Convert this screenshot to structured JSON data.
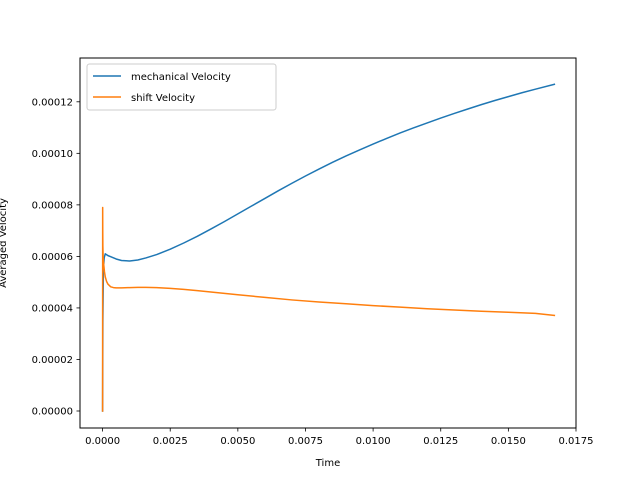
{
  "chart_data": {
    "type": "line",
    "title": "",
    "xlabel": "Time",
    "ylabel": "Averaged Velocity",
    "xlim": [
      -0.000835,
      0.0175
    ],
    "ylim": [
      -6.6e-06,
      0.000137
    ],
    "grid": false,
    "legend_position": "top-left",
    "x_ticks": [
      {
        "value": 0.0,
        "label": "0.0000"
      },
      {
        "value": 0.0025,
        "label": "0.0025"
      },
      {
        "value": 0.005,
        "label": "0.0050"
      },
      {
        "value": 0.0075,
        "label": "0.0075"
      },
      {
        "value": 0.01,
        "label": "0.0100"
      },
      {
        "value": 0.0125,
        "label": "0.0125"
      },
      {
        "value": 0.015,
        "label": "0.0150"
      },
      {
        "value": 0.0175,
        "label": "0.0175"
      }
    ],
    "y_ticks": [
      {
        "value": 0.0,
        "label": "0.00000"
      },
      {
        "value": 2e-05,
        "label": "0.00002"
      },
      {
        "value": 4e-05,
        "label": "0.00004"
      },
      {
        "value": 6e-05,
        "label": "0.00006"
      },
      {
        "value": 8e-05,
        "label": "0.00008"
      },
      {
        "value": 0.0001,
        "label": "0.00010"
      },
      {
        "value": 0.00012,
        "label": "0.00012"
      }
    ],
    "series": [
      {
        "name": "mechanical Velocity",
        "color": "#1f77b4",
        "x": [
          0.0,
          1e-05,
          3e-05,
          6e-05,
          0.0001,
          0.0002,
          0.0003,
          0.0005,
          0.0007,
          0.001,
          0.0013,
          0.0016,
          0.002,
          0.0025,
          0.003,
          0.0035,
          0.004,
          0.0045,
          0.005,
          0.0055,
          0.006,
          0.0065,
          0.007,
          0.0075,
          0.008,
          0.0085,
          0.009,
          0.0095,
          0.01,
          0.0105,
          0.011,
          0.0115,
          0.012,
          0.0125,
          0.013,
          0.0135,
          0.014,
          0.0145,
          0.015,
          0.0155,
          0.016,
          0.0167
        ],
        "y": [
          0.0,
          3.5e-05,
          5.5e-05,
          5.95e-05,
          6.1e-05,
          6.03e-05,
          5.99e-05,
          5.9e-05,
          5.84e-05,
          5.82e-05,
          5.86e-05,
          5.94e-05,
          6.07e-05,
          6.28e-05,
          6.52e-05,
          6.78e-05,
          7.06e-05,
          7.35e-05,
          7.65e-05,
          7.95e-05,
          8.25e-05,
          8.55e-05,
          8.84e-05,
          9.12e-05,
          9.39e-05,
          9.65e-05,
          9.9e-05,
          0.0001013,
          0.0001036,
          0.0001058,
          0.0001079,
          0.0001099,
          0.0001118,
          0.0001137,
          0.0001155,
          0.0001172,
          0.0001189,
          0.0001205,
          0.000122,
          0.0001235,
          0.0001249,
          0.0001268
        ]
      },
      {
        "name": "shift Velocity",
        "color": "#ff7f0e",
        "x": [
          0.0,
          3e-06,
          6e-06,
          1e-05,
          2e-05,
          4e-05,
          7e-05,
          0.0001,
          0.00015,
          0.0002,
          0.0003,
          0.0004,
          0.0005,
          0.0007,
          0.001,
          0.0013,
          0.0016,
          0.002,
          0.0025,
          0.003,
          0.0035,
          0.004,
          0.005,
          0.006,
          0.007,
          0.008,
          0.009,
          0.01,
          0.011,
          0.012,
          0.013,
          0.014,
          0.015,
          0.016,
          0.0167
        ],
        "y": [
          0.0,
          7.9e-05,
          7e-05,
          6.4e-05,
          6e-05,
          5.7e-05,
          5.4e-05,
          5.2e-05,
          5.02e-05,
          4.92e-05,
          4.82e-05,
          4.79e-05,
          4.78e-05,
          4.78e-05,
          4.79e-05,
          4.8e-05,
          4.8e-05,
          4.79e-05,
          4.76e-05,
          4.72e-05,
          4.67e-05,
          4.62e-05,
          4.51e-05,
          4.41e-05,
          4.31e-05,
          4.23e-05,
          4.16e-05,
          4.09e-05,
          4.03e-05,
          3.97e-05,
          3.92e-05,
          3.87e-05,
          3.83e-05,
          3.79e-05,
          3.71e-05
        ]
      }
    ]
  }
}
